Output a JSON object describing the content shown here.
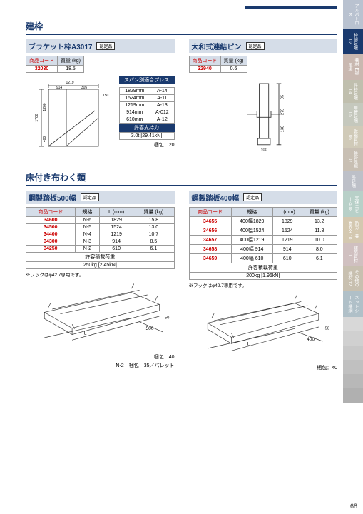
{
  "page_number": "68",
  "side_tabs": [
    {
      "label": "アルバトロス",
      "bg": "#b9c2d0",
      "h": 40
    },
    {
      "label": "枠組足場 02",
      "bg": "#1a3a6e",
      "h": 36
    },
    {
      "label": "養材 門型足場",
      "bg": "#c9b8b0",
      "h": 36
    },
    {
      "label": "件持足場 04",
      "bg": "#c0bfae",
      "h": 32
    },
    {
      "label": "単管足場 05",
      "bg": "#c5c8bd",
      "h": 32
    },
    {
      "label": "仮設資材 06",
      "bg": "#d0cab8",
      "h": 32
    },
    {
      "label": "鉄骨足場 07",
      "bg": "#c8bfb3",
      "h": 32
    },
    {
      "label": "吊足場",
      "bg": "#bdc0c8",
      "h": 28
    },
    {
      "label": "支保エビーム 08",
      "bg": "#b8d0c8",
      "h": 36
    },
    {
      "label": "防カ・養管安全 10",
      "bg": "#d4c8b0",
      "h": 36
    },
    {
      "label": "建築資材 11",
      "bg": "#d0c0c0",
      "h": 32
    },
    {
      "label": "その他の機材 12",
      "bg": "#c8c0b0",
      "h": 36
    },
    {
      "label": "ネットシート機網 ",
      "bg": "#b0c0c8",
      "h": 36
    },
    {
      "label": "",
      "bg": "#d8d8d8",
      "h": 20
    },
    {
      "label": "",
      "bg": "#d0d0d0",
      "h": 20
    },
    {
      "label": "",
      "bg": "#c8c8c8",
      "h": 20
    },
    {
      "label": "",
      "bg": "#c0c0c0",
      "h": 20
    },
    {
      "label": "",
      "bg": "#b8b8b8",
      "h": 20
    },
    {
      "label": "",
      "bg": "#b0b0b0",
      "h": 20
    }
  ],
  "section1_title": "建枠",
  "bracket": {
    "name": "ブラケット枠A3017",
    "badge": "認定品",
    "header": [
      "商品コード",
      "質量 (kg)"
    ],
    "code": "32030",
    "weight": "18.5",
    "press_title": "スパン別適合プレス",
    "press": [
      [
        "1829mm",
        "A-14"
      ],
      [
        "1524mm",
        "A-11"
      ],
      [
        "1219mm",
        "A-13"
      ],
      [
        "914mm",
        "A-012"
      ],
      [
        "610mm",
        "A-12"
      ]
    ],
    "load_title": "許容支持力",
    "load": "3.0t [29.41kN]",
    "kakaku": "梱包：20"
  },
  "pin": {
    "name": "大和式連結ピン",
    "badge": "認定品",
    "header": [
      "商品コード",
      "質量 (kg)"
    ],
    "code": "32940",
    "weight": "0.6"
  },
  "section2_title": "床付き布わく類",
  "plank500": {
    "name": "鋼製踏板500幅",
    "badge": "認定品",
    "header": [
      "商品コード",
      "規格",
      "L (mm)",
      "質量 (kg)"
    ],
    "rows": [
      [
        "34600",
        "N-6",
        "1829",
        "15.8"
      ],
      [
        "34500",
        "N-5",
        "1524",
        "13.0"
      ],
      [
        "34400",
        "N-4",
        "1219",
        "10.7"
      ],
      [
        "34300",
        "N-3",
        "914",
        "8.5"
      ],
      [
        "34250",
        "N-2",
        "610",
        "6.1"
      ]
    ],
    "load_title": "許容積載荷重",
    "load": "250kg [2.45kN]",
    "note": "※フックはφ42.7専用です。",
    "kakaku": "梱包：40",
    "kakaku2": "N-2　梱包：35／パレット"
  },
  "plank400": {
    "name": "鋼製踏板400幅",
    "badge": "認定品",
    "header": [
      "商品コード",
      "規格",
      "L (mm)",
      "質量 (kg)"
    ],
    "rows": [
      [
        "34655",
        "400幅1829",
        "1829",
        "13.2"
      ],
      [
        "34656",
        "400幅1524",
        "1524",
        "11.8"
      ],
      [
        "34657",
        "400幅1219",
        "1219",
        "10.0"
      ],
      [
        "34658",
        "400幅 914",
        "914",
        "8.0"
      ],
      [
        "34659",
        "400幅 610",
        "610",
        "6.1"
      ]
    ],
    "load_title": "許容積載荷重",
    "load": "200kg [1.96kN]",
    "note": "※フックはφ42.7専用です。",
    "kakaku": "梱包：40"
  }
}
